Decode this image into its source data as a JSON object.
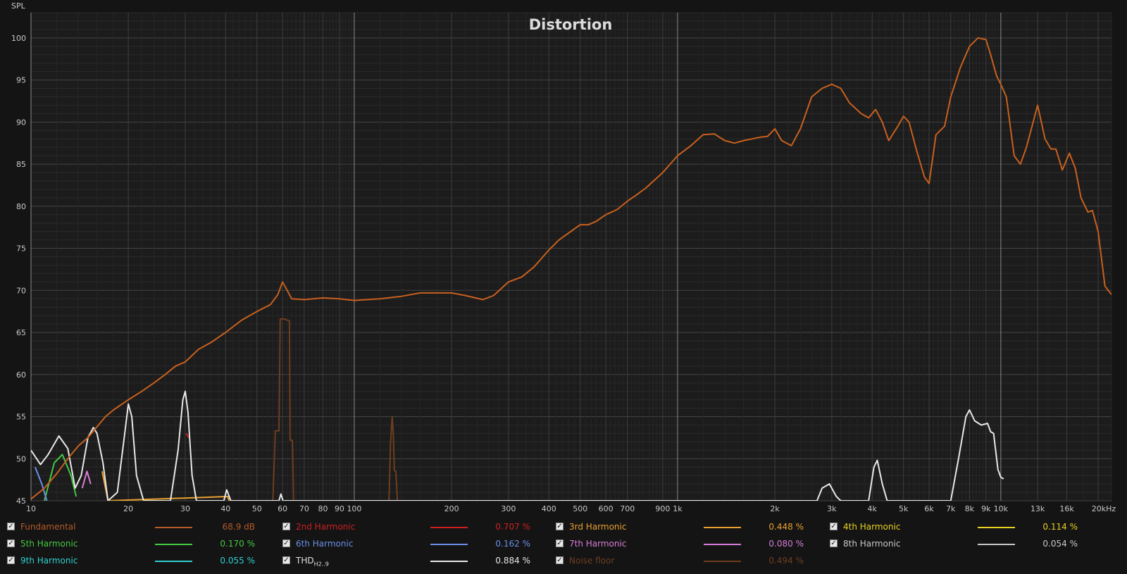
{
  "chart_data": {
    "type": "line",
    "title": "Distortion",
    "ylabel": "SPL",
    "xscale": "log",
    "xlim": [
      10,
      22000
    ],
    "ylim": [
      45,
      103
    ],
    "grid": true,
    "y_ticks": [
      45,
      50,
      55,
      60,
      65,
      70,
      75,
      80,
      85,
      90,
      95,
      100
    ],
    "x_ticks": [
      {
        "v": 10,
        "l": "10"
      },
      {
        "v": 20,
        "l": "20"
      },
      {
        "v": 30,
        "l": "30"
      },
      {
        "v": 40,
        "l": "40"
      },
      {
        "v": 50,
        "l": "50"
      },
      {
        "v": 60,
        "l": "60"
      },
      {
        "v": 70,
        "l": "70"
      },
      {
        "v": 80,
        "l": "80"
      },
      {
        "v": 90,
        "l": "90"
      },
      {
        "v": 100,
        "l": "100"
      },
      {
        "v": 200,
        "l": "200"
      },
      {
        "v": 300,
        "l": "300"
      },
      {
        "v": 400,
        "l": "400"
      },
      {
        "v": 500,
        "l": "500"
      },
      {
        "v": 600,
        "l": "600"
      },
      {
        "v": 700,
        "l": "700"
      },
      {
        "v": 900,
        "l": "900"
      },
      {
        "v": 1000,
        "l": "1k"
      },
      {
        "v": 2000,
        "l": "2k"
      },
      {
        "v": 3000,
        "l": "3k"
      },
      {
        "v": 4000,
        "l": "4k"
      },
      {
        "v": 5000,
        "l": "5k"
      },
      {
        "v": 6000,
        "l": "6k"
      },
      {
        "v": 7000,
        "l": "7k"
      },
      {
        "v": 8000,
        "l": "8k"
      },
      {
        "v": 9000,
        "l": "9k"
      },
      {
        "v": 10000,
        "l": "10k"
      },
      {
        "v": 13000,
        "l": "13k"
      },
      {
        "v": 16000,
        "l": "16k"
      },
      {
        "v": 20000,
        "l": "20kHz"
      }
    ],
    "series": [
      {
        "name": "Fundamental",
        "color": "#c8601e",
        "points": [
          [
            10,
            45.2
          ],
          [
            11,
            46.5
          ],
          [
            12,
            48.2
          ],
          [
            13,
            50.0
          ],
          [
            14,
            51.5
          ],
          [
            15,
            52.5
          ],
          [
            16,
            53.8
          ],
          [
            17,
            55.0
          ],
          [
            18,
            55.8
          ],
          [
            20,
            57.0
          ],
          [
            22,
            58.0
          ],
          [
            24,
            59.0
          ],
          [
            26,
            60.0
          ],
          [
            28,
            61.0
          ],
          [
            30,
            61.5
          ],
          [
            33,
            63.0
          ],
          [
            36,
            63.8
          ],
          [
            40,
            65.0
          ],
          [
            45,
            66.5
          ],
          [
            50,
            67.5
          ],
          [
            55,
            68.3
          ],
          [
            58,
            69.5
          ],
          [
            60,
            71.0
          ],
          [
            62,
            70.0
          ],
          [
            64,
            69.0
          ],
          [
            70,
            68.9
          ],
          [
            80,
            69.1
          ],
          [
            90,
            69.0
          ],
          [
            100,
            68.8
          ],
          [
            110,
            68.9
          ],
          [
            120,
            69.0
          ],
          [
            140,
            69.3
          ],
          [
            160,
            69.7
          ],
          [
            180,
            69.7
          ],
          [
            200,
            69.7
          ],
          [
            220,
            69.4
          ],
          [
            250,
            68.9
          ],
          [
            270,
            69.4
          ],
          [
            300,
            71.0
          ],
          [
            330,
            71.6
          ],
          [
            360,
            72.8
          ],
          [
            400,
            74.8
          ],
          [
            430,
            76.0
          ],
          [
            460,
            76.8
          ],
          [
            500,
            77.8
          ],
          [
            530,
            77.8
          ],
          [
            560,
            78.2
          ],
          [
            600,
            79.0
          ],
          [
            650,
            79.6
          ],
          [
            700,
            80.6
          ],
          [
            750,
            81.4
          ],
          [
            800,
            82.2
          ],
          [
            900,
            84.0
          ],
          [
            1000,
            86.0
          ],
          [
            1100,
            87.2
          ],
          [
            1200,
            88.5
          ],
          [
            1300,
            88.6
          ],
          [
            1400,
            87.8
          ],
          [
            1500,
            87.5
          ],
          [
            1600,
            87.8
          ],
          [
            1800,
            88.2
          ],
          [
            1900,
            88.3
          ],
          [
            2000,
            89.2
          ],
          [
            2100,
            87.8
          ],
          [
            2250,
            87.2
          ],
          [
            2400,
            89.2
          ],
          [
            2600,
            93.0
          ],
          [
            2800,
            94.0
          ],
          [
            3000,
            94.5
          ],
          [
            3200,
            94.0
          ],
          [
            3400,
            92.3
          ],
          [
            3700,
            91.0
          ],
          [
            3900,
            90.5
          ],
          [
            4100,
            91.5
          ],
          [
            4300,
            90.0
          ],
          [
            4500,
            87.8
          ],
          [
            4800,
            89.5
          ],
          [
            5000,
            90.7
          ],
          [
            5200,
            90.0
          ],
          [
            5500,
            86.5
          ],
          [
            5800,
            83.5
          ],
          [
            6000,
            82.7
          ],
          [
            6300,
            88.5
          ],
          [
            6700,
            89.5
          ],
          [
            7000,
            93.0
          ],
          [
            7500,
            96.5
          ],
          [
            8000,
            99.0
          ],
          [
            8500,
            100.0
          ],
          [
            9000,
            99.8
          ],
          [
            9300,
            98.0
          ],
          [
            9700,
            95.5
          ],
          [
            10000,
            94.5
          ],
          [
            10400,
            93.0
          ],
          [
            11000,
            86.0
          ],
          [
            11500,
            85.0
          ],
          [
            12000,
            87.0
          ],
          [
            13000,
            92.0
          ],
          [
            13700,
            88.0
          ],
          [
            14300,
            86.8
          ],
          [
            14800,
            86.8
          ],
          [
            15500,
            84.3
          ],
          [
            16300,
            86.3
          ],
          [
            17000,
            84.5
          ],
          [
            17700,
            81.0
          ],
          [
            18600,
            79.3
          ],
          [
            19200,
            79.5
          ],
          [
            20000,
            77.0
          ],
          [
            21000,
            70.5
          ],
          [
            22000,
            69.5
          ]
        ]
      },
      {
        "name": "THD",
        "color": "#e8e8e8",
        "points": [
          [
            10,
            51.0
          ],
          [
            10.7,
            49.3
          ],
          [
            11.3,
            50.5
          ],
          [
            12.2,
            52.7
          ],
          [
            13,
            51.2
          ],
          [
            13.7,
            46.5
          ],
          [
            14.3,
            48.0
          ],
          [
            15,
            52.5
          ],
          [
            15.6,
            53.7
          ],
          [
            16,
            53.0
          ],
          [
            16.7,
            49.5
          ],
          [
            17.3,
            45.0
          ],
          [
            18.5,
            46.0
          ],
          [
            19.5,
            53.0
          ],
          [
            20,
            56.5
          ],
          [
            20.5,
            55.0
          ],
          [
            21.2,
            48.0
          ],
          [
            22.3,
            45.0
          ],
          [
            27,
            45.0
          ],
          [
            28.5,
            51.0
          ],
          [
            29.5,
            57.0
          ],
          [
            30,
            58.0
          ],
          [
            30.6,
            55.5
          ],
          [
            31.5,
            48.0
          ],
          [
            32.5,
            45.0
          ],
          [
            39.5,
            45.0
          ],
          [
            40.3,
            46.3
          ],
          [
            41.5,
            45.0
          ],
          [
            58.5,
            45.0
          ],
          [
            59.3,
            45.8
          ],
          [
            60.2,
            45.0
          ],
          [
            2700,
            45.0
          ],
          [
            2800,
            46.5
          ],
          [
            2950,
            47.0
          ],
          [
            3100,
            45.5
          ],
          [
            3200,
            45.0
          ],
          [
            3900,
            45.0
          ],
          [
            4050,
            49.0
          ],
          [
            4150,
            49.8
          ],
          [
            4300,
            47.0
          ],
          [
            4450,
            45.0
          ],
          [
            7000,
            45.0
          ],
          [
            7400,
            50.0
          ],
          [
            7800,
            55.0
          ],
          [
            8000,
            55.8
          ],
          [
            8300,
            54.5
          ],
          [
            8700,
            54.0
          ],
          [
            9100,
            54.2
          ],
          [
            9300,
            53.2
          ],
          [
            9500,
            53.0
          ],
          [
            9800,
            48.7
          ],
          [
            10000,
            47.8
          ],
          [
            10200,
            47.6
          ]
        ]
      },
      {
        "name": "5th Harmonic",
        "color": "#45c845",
        "points": [
          [
            11,
            45.0
          ],
          [
            11.8,
            49.5
          ],
          [
            12.5,
            50.5
          ],
          [
            13.3,
            48.0
          ],
          [
            13.8,
            45.5
          ]
        ]
      },
      {
        "name": "6th Harmonic",
        "color": "#6a8fe8",
        "points": [
          [
            10.3,
            49.0
          ],
          [
            10.8,
            47.0
          ],
          [
            11.2,
            45.0
          ]
        ]
      },
      {
        "name": "7th Harmonic",
        "color": "#d87ed8",
        "points": [
          [
            14.4,
            46.5
          ],
          [
            14.9,
            48.5
          ],
          [
            15.3,
            47.0
          ]
        ]
      },
      {
        "name": "3rd Harmonic",
        "color": "#e8a030",
        "points": [
          [
            16.6,
            48.5
          ],
          [
            17.0,
            46.5
          ],
          [
            17.3,
            45.0
          ],
          [
            40.6,
            45.5
          ],
          [
            41.0,
            45.0
          ]
        ]
      },
      {
        "name": "2nd Harmonic",
        "color": "#cc2020",
        "points": [
          [
            30.2,
            53.0
          ],
          [
            30.8,
            52.5
          ]
        ]
      },
      {
        "name": "Noise floor",
        "color": "#6e3e20",
        "points": [
          [
            56,
            45.0
          ],
          [
            57,
            53.3
          ],
          [
            58.5,
            53.3
          ],
          [
            59,
            66.6
          ],
          [
            61,
            66.6
          ],
          [
            61.5,
            66.5
          ],
          [
            63,
            66.4
          ],
          [
            63.3,
            52.2
          ],
          [
            64.4,
            52.2
          ],
          [
            64.9,
            45.0
          ],
          [
            128,
            45.0
          ],
          [
            129.5,
            52.0
          ],
          [
            131,
            55.0
          ],
          [
            132,
            53.0
          ],
          [
            133,
            48.6
          ],
          [
            134.5,
            48.5
          ],
          [
            136,
            45.0
          ]
        ]
      }
    ]
  },
  "legend": [
    {
      "label": "Fundamental",
      "value": "68.9 dB",
      "color": "#b45a28",
      "row": 0,
      "col": 0
    },
    {
      "label": "2nd Harmonic",
      "value": "0.707 %",
      "color": "#cc2020",
      "row": 0,
      "col": 1
    },
    {
      "label": "3rd Harmonic",
      "value": "0.448 %",
      "color": "#e8a030",
      "row": 0,
      "col": 2
    },
    {
      "label": "4th Harmonic",
      "value": "0.114 %",
      "color": "#e8d020",
      "row": 0,
      "col": 3
    },
    {
      "label": "5th Harmonic",
      "value": "0.170 %",
      "color": "#45c845",
      "row": 1,
      "col": 0
    },
    {
      "label": "6th Harmonic",
      "value": "0.162 %",
      "color": "#6a8fe8",
      "row": 1,
      "col": 1
    },
    {
      "label": "7th Harmonic",
      "value": "0.080 %",
      "color": "#d87ed8",
      "row": 1,
      "col": 2
    },
    {
      "label": "8th Harmonic",
      "value": "0.054 %",
      "color": "#c8c8c8",
      "row": 1,
      "col": 3
    },
    {
      "label": "9th Harmonic",
      "value": "0.055 %",
      "color": "#30d0d0",
      "row": 2,
      "col": 0
    },
    {
      "label": "THD",
      "sub": "H2..9",
      "value": "0.884 %",
      "color": "#e8e8e8",
      "row": 2,
      "col": 1
    },
    {
      "label": "Noise floor",
      "value": "0.494 %",
      "color": "#6e3e20",
      "row": 2,
      "col": 2
    }
  ]
}
